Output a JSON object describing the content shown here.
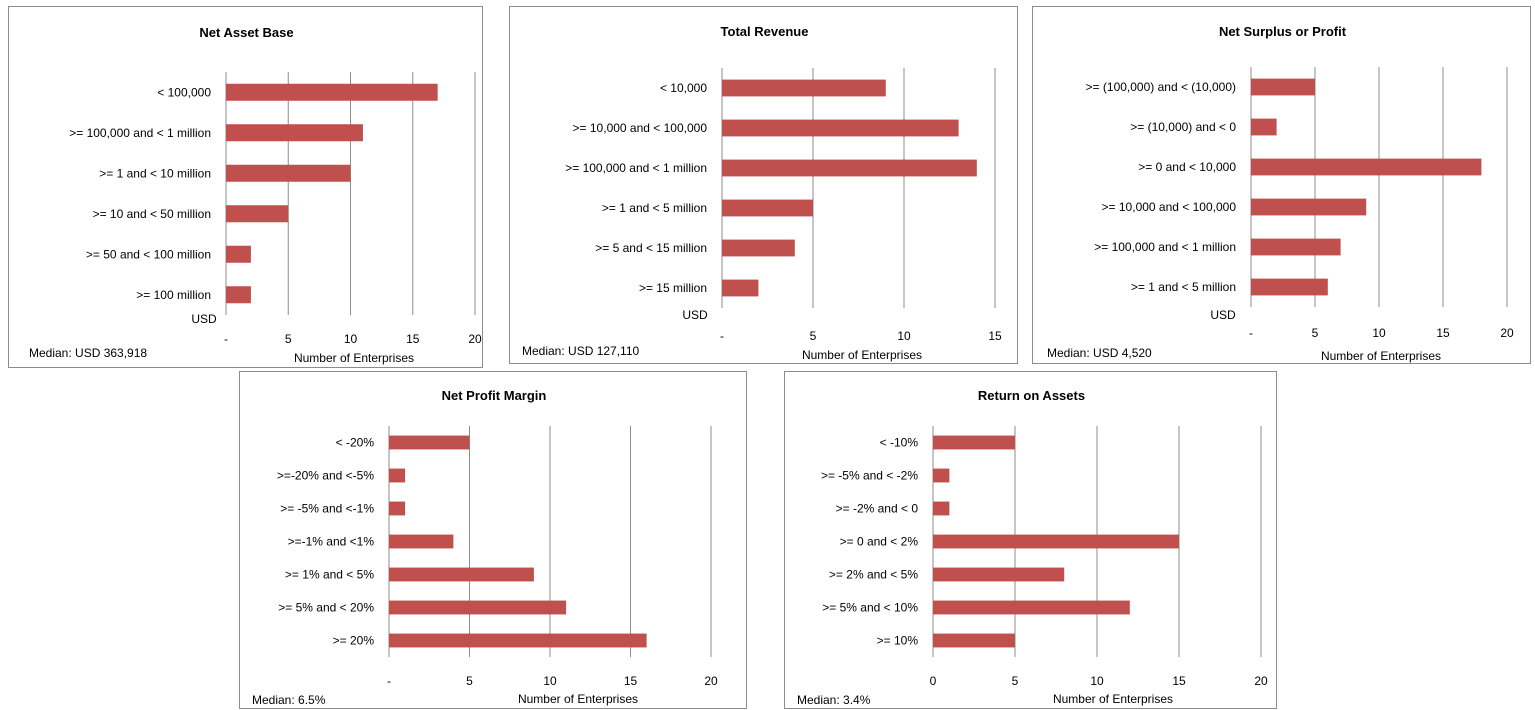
{
  "colors": {
    "bar": "#c0504d",
    "grid": "#8c8c8c",
    "border": "#8c8c8c"
  },
  "chart_data": [
    {
      "type": "bar",
      "orientation": "horizontal",
      "title": "Net Asset Base",
      "categories": [
        "< 100,000",
        ">= 100,000 and < 1 million",
        ">= 1 and < 10 million",
        ">= 10 and < 50 million",
        ">= 50 and < 100 million",
        ">= 100 million"
      ],
      "values": [
        17,
        11,
        10,
        5,
        2,
        2
      ],
      "xlim": [
        0,
        20
      ],
      "xticks": [
        0,
        5,
        10,
        15,
        20
      ],
      "xtick_labels": [
        "-",
        "5",
        "10",
        "15",
        "20"
      ],
      "xlabel": "Number of Enterprises",
      "ylabel": "USD",
      "note": "Median: USD 363,918",
      "grid": true,
      "legend": "none"
    },
    {
      "type": "bar",
      "orientation": "horizontal",
      "title": "Total Revenue",
      "categories": [
        "< 10,000",
        ">= 10,000 and < 100,000",
        ">= 100,000 and < 1 million",
        ">= 1 and < 5 million",
        ">= 5 and < 15 million",
        ">= 15 million"
      ],
      "values": [
        9,
        13,
        14,
        5,
        4,
        2
      ],
      "xlim": [
        0,
        15
      ],
      "xticks": [
        0,
        5,
        10,
        15
      ],
      "xtick_labels": [
        "-",
        "5",
        "10",
        "15"
      ],
      "xlabel": "Number of Enterprises",
      "ylabel": "USD",
      "note": "Median: USD 127,110",
      "grid": true,
      "legend": "none"
    },
    {
      "type": "bar",
      "orientation": "horizontal",
      "title": "Net Surplus or Profit",
      "categories": [
        ">= (100,000) and < (10,000)",
        ">= (10,000) and < 0",
        ">= 0 and < 10,000",
        ">= 10,000 and < 100,000",
        ">= 100,000 and < 1 million",
        ">= 1 and < 5 million"
      ],
      "values": [
        5,
        2,
        18,
        9,
        7,
        6
      ],
      "xlim": [
        0,
        20
      ],
      "xticks": [
        0,
        5,
        10,
        15,
        20
      ],
      "xtick_labels": [
        "-",
        "5",
        "10",
        "15",
        "20"
      ],
      "xlabel": "Number of Enterprises",
      "ylabel": "USD",
      "note": "Median: USD 4,520",
      "grid": true,
      "legend": "none"
    },
    {
      "type": "bar",
      "orientation": "horizontal",
      "title": "Net Profit Margin",
      "categories": [
        "< -20%",
        ">=-20% and <-5%",
        ">= -5% and <-1%",
        ">=-1% and <1%",
        ">= 1% and < 5%",
        ">= 5% and < 20%",
        ">= 20%"
      ],
      "values": [
        5,
        1,
        1,
        4,
        9,
        11,
        16
      ],
      "xlim": [
        0,
        20
      ],
      "xticks": [
        0,
        5,
        10,
        15,
        20
      ],
      "xtick_labels": [
        "-",
        "5",
        "10",
        "15",
        "20"
      ],
      "xlabel": "Number of Enterprises",
      "ylabel": "",
      "note": "Median: 6.5%",
      "grid": true,
      "legend": "none"
    },
    {
      "type": "bar",
      "orientation": "horizontal",
      "title": "Return on Assets",
      "categories": [
        "< -10%",
        ">= -5% and < -2%",
        ">= -2% and < 0",
        ">= 0 and < 2%",
        ">= 2% and < 5%",
        ">= 5% and < 10%",
        ">= 10%"
      ],
      "values": [
        5,
        1,
        1,
        15,
        8,
        12,
        5
      ],
      "xlim": [
        0,
        20
      ],
      "xticks": [
        0,
        5,
        10,
        15,
        20
      ],
      "xtick_labels": [
        "0",
        "5",
        "10",
        "15",
        "20"
      ],
      "xlabel": "Number of Enterprises",
      "ylabel": "",
      "note": "Median: 3.4%",
      "grid": true,
      "legend": "none"
    }
  ]
}
